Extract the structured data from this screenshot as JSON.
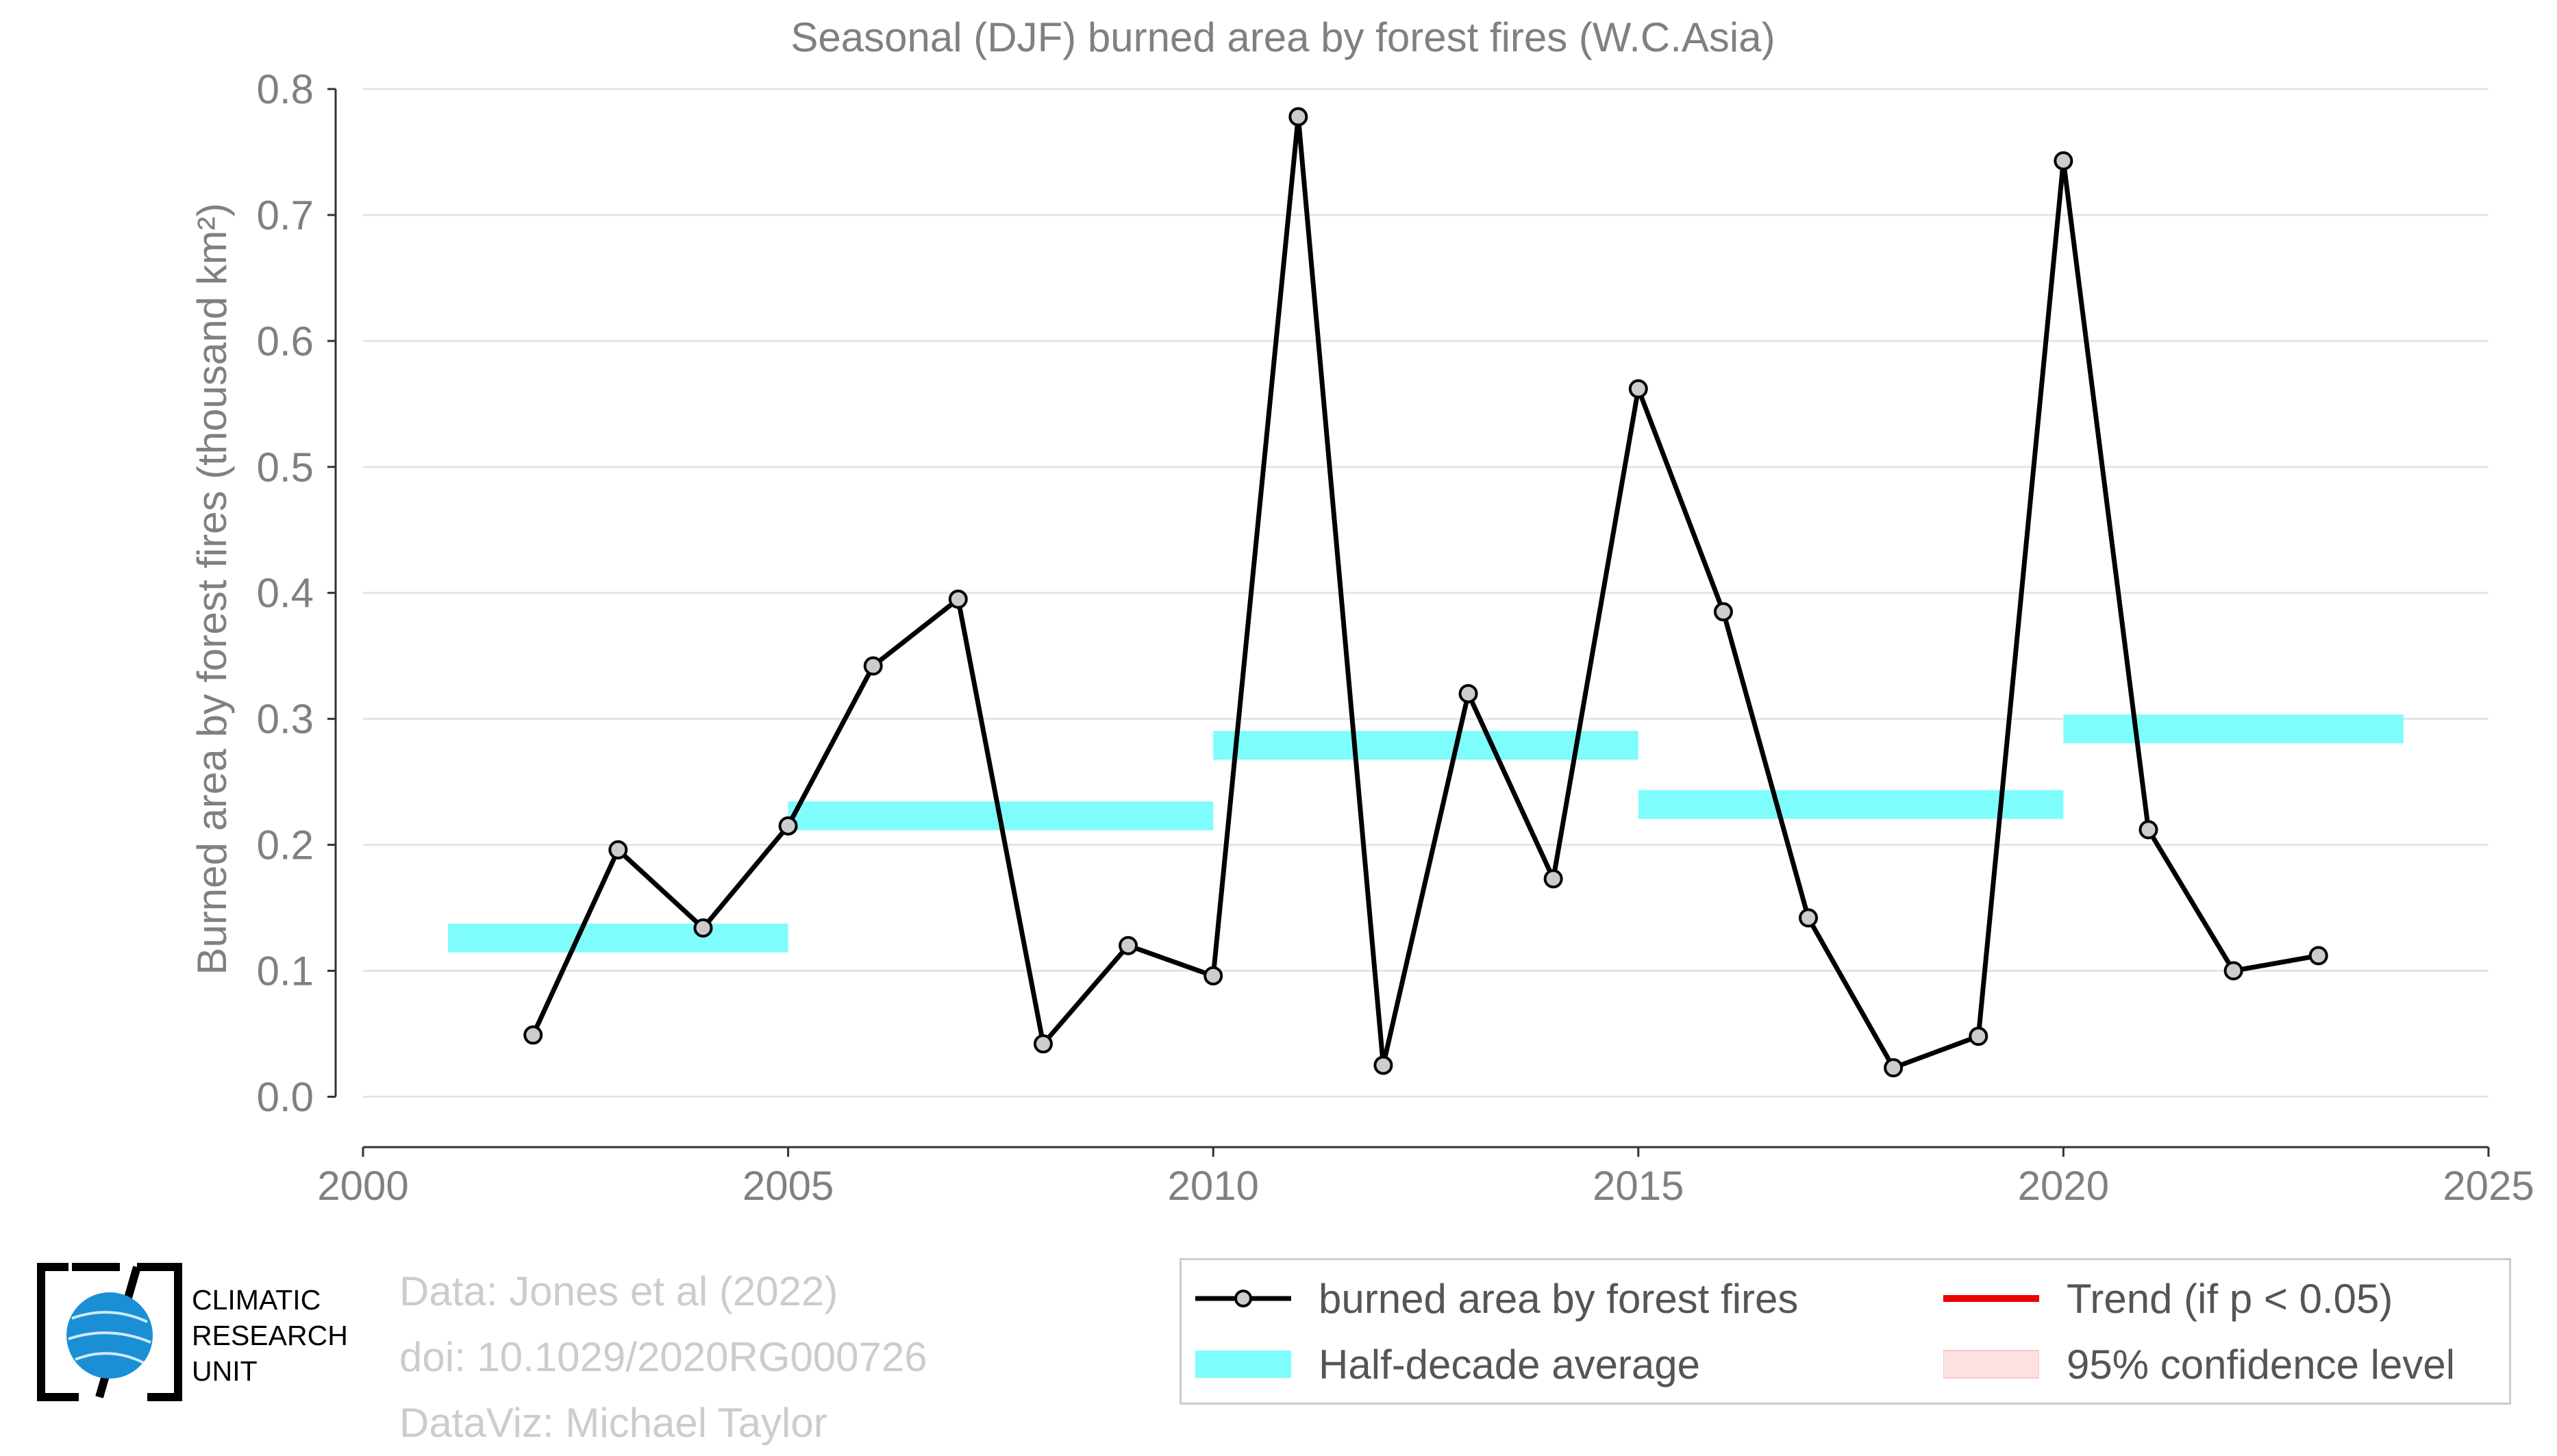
{
  "chart_data": {
    "type": "line",
    "title": "Seasonal (DJF) burned area by forest fires (W.C.Asia)",
    "ylabel": "Burned area by forest fires (thousand km²)",
    "xlabel": "",
    "xlim": [
      2000,
      2025
    ],
    "ylim": [
      -0.04,
      0.8
    ],
    "x_ticks": [
      2000,
      2005,
      2010,
      2015,
      2020,
      2025
    ],
    "y_ticks": [
      0.0,
      0.1,
      0.2,
      0.3,
      0.4,
      0.5,
      0.6,
      0.7,
      0.8
    ],
    "y_tick_labels": [
      "0.0",
      "0.1",
      "0.2",
      "0.3",
      "0.4",
      "0.5",
      "0.6",
      "0.7",
      "0.8"
    ],
    "grid": "horizontal",
    "series": [
      {
        "name": "burned area by forest fires",
        "color": "#000000",
        "marker_fill": "#cccccc",
        "x": [
          2002,
          2003,
          2004,
          2005,
          2006,
          2007,
          2008,
          2009,
          2010,
          2011,
          2012,
          2013,
          2014,
          2015,
          2016,
          2017,
          2018,
          2019,
          2020,
          2021,
          2022,
          2023
        ],
        "y": [
          0.049,
          0.196,
          0.134,
          0.215,
          0.342,
          0.395,
          0.042,
          0.12,
          0.096,
          0.778,
          0.025,
          0.32,
          0.173,
          0.562,
          0.385,
          0.142,
          0.023,
          0.048,
          0.743,
          0.212,
          0.1,
          0.112
        ]
      }
    ],
    "half_decade_average": {
      "name": "Half-decade average",
      "color": "#7ffcfc",
      "segments": [
        {
          "x0": 2001,
          "x1": 2005,
          "y": 0.126
        },
        {
          "x0": 2005,
          "x1": 2010,
          "y": 0.223
        },
        {
          "x0": 2010,
          "x1": 2015,
          "y": 0.279
        },
        {
          "x0": 2015,
          "x1": 2020,
          "y": 0.232
        },
        {
          "x0": 2020,
          "x1": 2024,
          "y": 0.292
        }
      ]
    },
    "legend": {
      "position": "bottom-right",
      "entries": [
        {
          "label": "burned area by forest fires",
          "kind": "line-marker",
          "color": "#000000"
        },
        {
          "label": "Trend (if p < 0.05)",
          "kind": "line",
          "color": "#ee0000"
        },
        {
          "label": "Half-decade average",
          "kind": "band",
          "color": "#7ffcfc"
        },
        {
          "label": "95% confidence level",
          "kind": "band",
          "color": "#fde0e0"
        }
      ]
    }
  },
  "credits": {
    "line1": "Data: Jones et al (2022)",
    "line2": "doi: 10.1029/2020RG000726",
    "line3": "DataViz: Michael Taylor"
  },
  "logo": {
    "line1": "CLIMATIC",
    "line2": "RESEARCH",
    "line3": "UNIT",
    "globe_color": "#1a8fd6"
  }
}
